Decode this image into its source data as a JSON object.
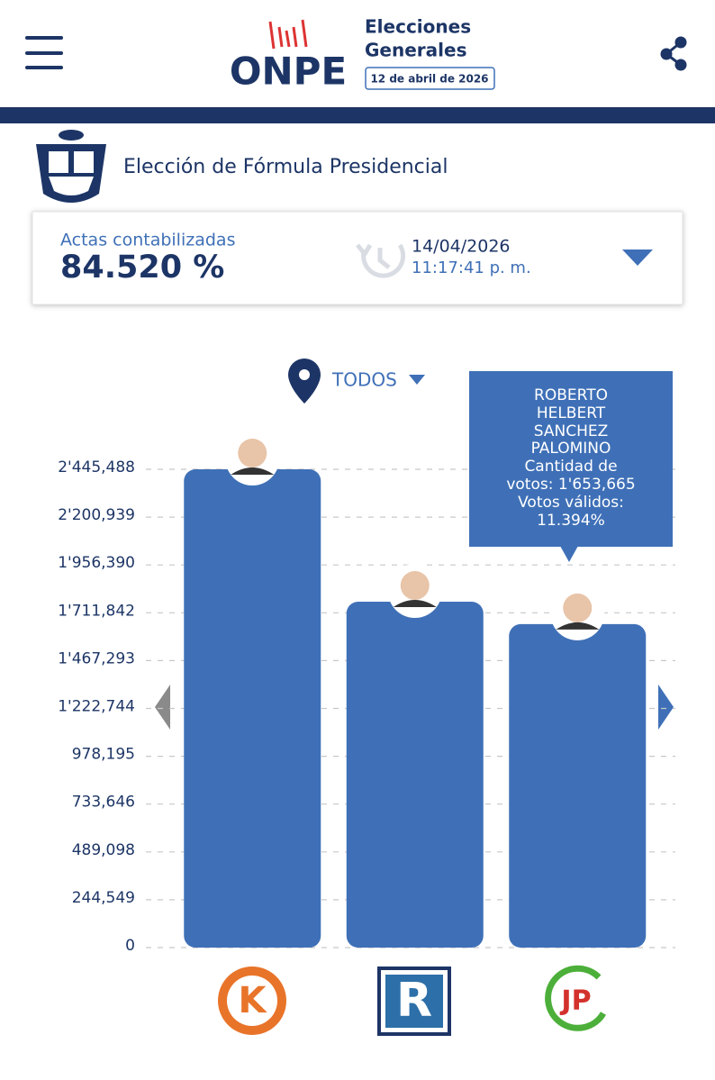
{
  "header": {
    "logo": "ONPE",
    "title_lines": [
      "Elecciones",
      "Generales"
    ],
    "date": "12 de abril de 2026"
  },
  "section_title": "Elección de Fórmula Presidencial",
  "summary": {
    "label": "Actas contabilizadas",
    "percent": "84.520 %",
    "date": "14/04/2026",
    "time": "11:17:41 p. m."
  },
  "filter": "TODOS",
  "tooltip": {
    "lines": [
      "ROBERTO",
      "HELBERT",
      "SANCHEZ",
      "PALOMINO",
      "Cantidad de",
      "votos: 1'653,665",
      "Votos válidos:",
      "11.394%"
    ]
  },
  "chart_data": {
    "type": "bar",
    "categories": [
      null,
      null,
      null
    ],
    "values": [
      2445488,
      1768500,
      1653665
    ],
    "color": "#3f70b7",
    "ylim": [
      0,
      2445488
    ],
    "yticks": [
      0,
      {
        "value": 244549,
        "label": "244,549"
      },
      {
        "value": 489098,
        "label": "489,098"
      },
      {
        "value": 733646,
        "label": "733,646"
      },
      {
        "value": 978195,
        "label": "978,195"
      },
      {
        "value": 1222744,
        "label": "1'222,744"
      },
      {
        "value": 1467293,
        "label": "1'467,293"
      },
      {
        "value": 1711842,
        "label": "1'711,842"
      },
      {
        "value": 1956390,
        "label": "1'956,390"
      },
      {
        "value": 2200939,
        "label": "2'200,939"
      },
      {
        "value": 2445488,
        "label": "2'445,488"
      }
    ],
    "grid": true
  }
}
